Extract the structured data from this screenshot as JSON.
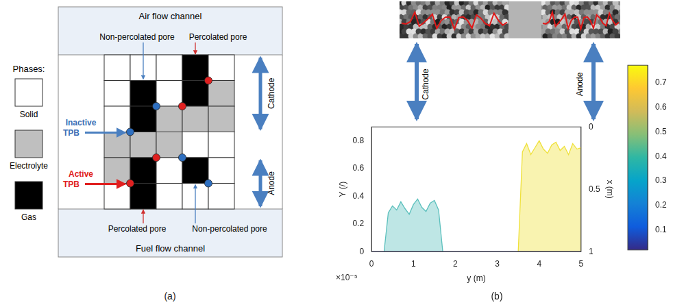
{
  "panel_a": {
    "label": "(a)",
    "phases_title": "Phases:",
    "phases": [
      {
        "name": "Solid",
        "color": "#ffffff"
      },
      {
        "name": "Electrolyte",
        "color": "#bfbfbf"
      },
      {
        "name": "Gas",
        "color": "#000000"
      }
    ],
    "top_channel": "Air flow channel",
    "bottom_channel": "Fuel flow channel",
    "grid": [
      [
        "Solid",
        "Solid",
        "Solid",
        "Gas",
        "Solid"
      ],
      [
        "Solid",
        "Gas",
        "Solid",
        "Gas",
        "Electrolyte"
      ],
      [
        "Solid",
        "Gas",
        "Electrolyte",
        "Electrolyte",
        "Electrolyte"
      ],
      [
        "Electrolyte",
        "Electrolyte",
        "Electrolyte",
        "Solid",
        "Solid"
      ],
      [
        "Electrolyte",
        "Gas",
        "Solid",
        "Gas",
        "Solid"
      ],
      [
        "Solid",
        "Gas",
        "Solid",
        "Solid",
        "Solid"
      ]
    ],
    "top_labels": [
      "Non-percolated pore",
      "Percolated pore"
    ],
    "bottom_labels": [
      "Percolated pore",
      "Non-percolated pore"
    ],
    "inactive_label": [
      "Inactive",
      "TPB"
    ],
    "active_label": [
      "Active",
      "TPB"
    ],
    "cathode": "Cathode",
    "anode": "Anode"
  },
  "panel_b": {
    "label": "(b)",
    "cathode": "Cathode",
    "anode": "Anode"
  },
  "chart_data": {
    "type": "line",
    "x_label": "y (m)",
    "x_multiplier": "×10⁻⁵",
    "y_label": "Y (/)",
    "y2_label": "x (m)",
    "xlim": [
      0,
      5e-05
    ],
    "xticks": [
      0,
      {
        "value": 1e-05,
        "label": "1"
      },
      {
        "value": 2e-05,
        "label": "2"
      },
      {
        "value": 3e-05,
        "label": "3"
      },
      {
        "value": 4e-05,
        "label": "4"
      },
      {
        "value": 5e-05,
        "label": "5"
      }
    ],
    "ylim": [
      0,
      0.9
    ],
    "yticks": [
      0,
      0.2,
      0.4,
      0.6,
      0.8
    ],
    "y2lim": [
      0,
      1
    ],
    "y2ticks": [
      0,
      0.5,
      1
    ],
    "grid": false,
    "series": [
      {
        "color": "#3b3d8c",
        "x": [
          0,
          5e-05
        ],
        "values": [
          0,
          0
        ]
      },
      {
        "color": "#5cc0bd",
        "x": [
          3e-06,
          4e-06,
          5e-06,
          6e-06,
          7e-06,
          8e-06,
          9e-06,
          1e-05,
          1.1e-05,
          1.2e-05,
          1.3e-05,
          1.4e-05,
          1.5e-05,
          1.6e-05,
          1.7e-05
        ],
        "values": [
          0,
          0.28,
          0.33,
          0.3,
          0.36,
          0.31,
          0.27,
          0.34,
          0.38,
          0.32,
          0.29,
          0.35,
          0.37,
          0.3,
          0
        ]
      },
      {
        "color": "#efe13a",
        "x": [
          3.5e-05,
          3.6e-05,
          3.7e-05,
          3.8e-05,
          3.9e-05,
          4e-05,
          4.1e-05,
          4.2e-05,
          4.3e-05,
          4.4e-05,
          4.5e-05,
          4.6e-05,
          4.7e-05,
          4.8e-05,
          4.9e-05,
          5e-05
        ],
        "values": [
          0,
          0.72,
          0.78,
          0.7,
          0.75,
          0.8,
          0.74,
          0.71,
          0.77,
          0.79,
          0.73,
          0.76,
          0.7,
          0.78,
          0.74,
          0.75
        ]
      }
    ],
    "colorbar": {
      "range": [
        0.02,
        0.77
      ],
      "ticks": [
        0.1,
        0.2,
        0.3,
        0.4,
        0.5,
        0.6,
        0.7
      ]
    }
  }
}
